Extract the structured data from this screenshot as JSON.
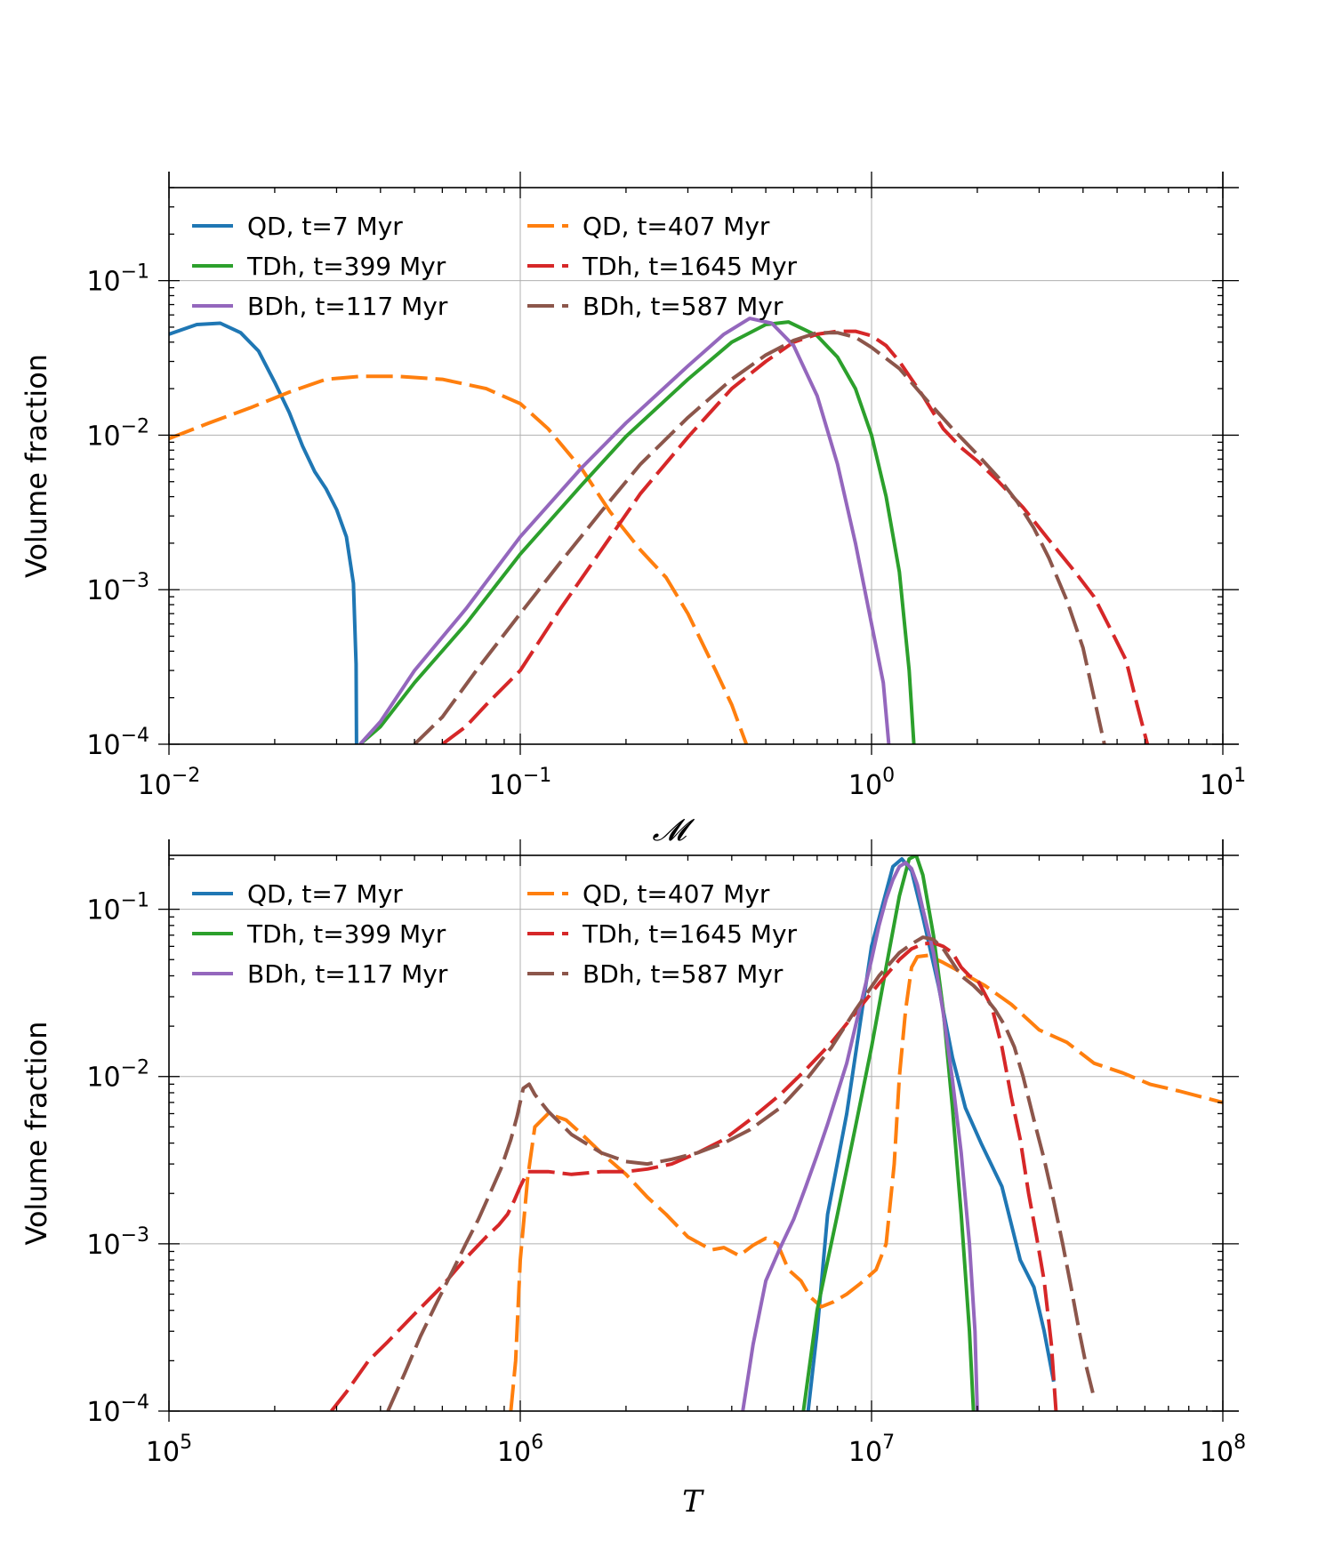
{
  "chart_data": [
    {
      "type": "line",
      "panel": "top",
      "xscale": "log",
      "yscale": "log",
      "xlim": [
        0.01,
        10
      ],
      "ylim": [
        0.0001,
        0.4
      ],
      "xlabel": "𝓜",
      "ylabel": "Volume fraction",
      "grid": true,
      "legend_position": "top-left",
      "xticks": [
        {
          "value": 0.01,
          "base": "10",
          "exp": "−2"
        },
        {
          "value": 0.1,
          "base": "10",
          "exp": "−1"
        },
        {
          "value": 1,
          "base": "10",
          "exp": "0"
        },
        {
          "value": 10,
          "base": "10",
          "exp": "1"
        }
      ],
      "yticks": [
        {
          "value": 0.0001,
          "base": "10",
          "exp": "−4"
        },
        {
          "value": 0.001,
          "base": "10",
          "exp": "−3"
        },
        {
          "value": 0.01,
          "base": "10",
          "exp": "−2"
        },
        {
          "value": 0.1,
          "base": "10",
          "exp": "−1"
        }
      ],
      "series": [
        {
          "name": "QD, t=7 Myr",
          "color": "#1f77b4",
          "dash": "solid",
          "x": [
            0.01,
            0.012,
            0.014,
            0.016,
            0.018,
            0.02,
            0.022,
            0.024,
            0.026,
            0.028,
            0.03,
            0.032,
            0.0335,
            0.034,
            0.0341,
            0.0342
          ],
          "y": [
            0.045,
            0.052,
            0.053,
            0.046,
            0.035,
            0.022,
            0.014,
            0.0085,
            0.0058,
            0.0045,
            0.0033,
            0.0022,
            0.0011,
            0.0004,
            0.00033,
            0.0001
          ]
        },
        {
          "name": "QD, t=407 Myr",
          "color": "#ff7f0e",
          "dash": "long",
          "x": [
            0.01,
            0.013,
            0.017,
            0.022,
            0.028,
            0.035,
            0.045,
            0.06,
            0.08,
            0.1,
            0.12,
            0.15,
            0.18,
            0.22,
            0.26,
            0.3,
            0.33,
            0.36,
            0.4,
            0.44
          ],
          "y": [
            0.0095,
            0.012,
            0.015,
            0.019,
            0.023,
            0.024,
            0.024,
            0.023,
            0.02,
            0.016,
            0.011,
            0.006,
            0.0032,
            0.0018,
            0.0012,
            0.0007,
            0.00045,
            0.0003,
            0.00018,
            0.0001
          ]
        },
        {
          "name": "TDh, t=399 Myr",
          "color": "#2ca02c",
          "dash": "solid",
          "x": [
            0.035,
            0.04,
            0.05,
            0.07,
            0.1,
            0.15,
            0.2,
            0.3,
            0.4,
            0.5,
            0.58,
            0.7,
            0.8,
            0.9,
            1.0,
            1.1,
            1.2,
            1.28,
            1.32
          ],
          "y": [
            0.0001,
            0.00013,
            0.00025,
            0.0006,
            0.0017,
            0.0048,
            0.0098,
            0.023,
            0.04,
            0.052,
            0.054,
            0.044,
            0.032,
            0.02,
            0.01,
            0.004,
            0.0013,
            0.0003,
            0.0001
          ]
        },
        {
          "name": "TDh, t=1645 Myr",
          "color": "#d62728",
          "dash": "long",
          "x": [
            0.06,
            0.07,
            0.08,
            0.1,
            0.13,
            0.17,
            0.22,
            0.3,
            0.4,
            0.5,
            0.6,
            0.7,
            0.8,
            0.9,
            1.0,
            1.1,
            1.2,
            1.4,
            1.6,
            1.8,
            2.0,
            2.3,
            2.7,
            3.2,
            3.8,
            4.3,
            4.8,
            5.3,
            5.7,
            6.1
          ],
          "y": [
            0.0001,
            0.00013,
            0.00018,
            0.0003,
            0.00075,
            0.0018,
            0.0042,
            0.0097,
            0.02,
            0.03,
            0.04,
            0.045,
            0.047,
            0.047,
            0.044,
            0.038,
            0.03,
            0.018,
            0.011,
            0.0083,
            0.0068,
            0.005,
            0.0034,
            0.0021,
            0.0013,
            0.0009,
            0.00055,
            0.00035,
            0.00018,
            0.0001
          ]
        },
        {
          "name": "BDh, t=117 Myr",
          "color": "#9467bd",
          "dash": "solid",
          "x": [
            0.035,
            0.04,
            0.05,
            0.07,
            0.1,
            0.15,
            0.2,
            0.3,
            0.38,
            0.45,
            0.52,
            0.6,
            0.7,
            0.8,
            0.9,
            1.0,
            1.08,
            1.12
          ],
          "y": [
            0.0001,
            0.00014,
            0.0003,
            0.00075,
            0.0022,
            0.0062,
            0.012,
            0.028,
            0.045,
            0.057,
            0.053,
            0.038,
            0.018,
            0.0065,
            0.002,
            0.0006,
            0.00025,
            0.0001
          ]
        },
        {
          "name": "BDh, t=587 Myr",
          "color": "#8c564b",
          "dash": "long",
          "x": [
            0.05,
            0.06,
            0.075,
            0.1,
            0.13,
            0.17,
            0.22,
            0.3,
            0.4,
            0.5,
            0.6,
            0.7,
            0.8,
            0.9,
            1.0,
            1.2,
            1.4,
            1.7,
            2.0,
            2.3,
            2.6,
            2.9,
            3.2,
            3.6,
            4.0,
            4.3,
            4.6
          ],
          "y": [
            0.0001,
            0.00015,
            0.0003,
            0.0007,
            0.0015,
            0.0032,
            0.0065,
            0.013,
            0.023,
            0.033,
            0.041,
            0.046,
            0.046,
            0.043,
            0.037,
            0.027,
            0.018,
            0.011,
            0.0075,
            0.0053,
            0.0037,
            0.0025,
            0.0016,
            0.00085,
            0.00042,
            0.0002,
            0.0001
          ]
        }
      ]
    },
    {
      "type": "line",
      "panel": "bottom",
      "xscale": "log",
      "yscale": "log",
      "xlim": [
        100000,
        100000000
      ],
      "ylim": [
        0.0001,
        0.21
      ],
      "xlabel": "T",
      "ylabel": "Volume fraction",
      "grid": true,
      "legend_position": "top-left",
      "xticks": [
        {
          "value": 100000,
          "base": "10",
          "exp": "5"
        },
        {
          "value": 1000000,
          "base": "10",
          "exp": "6"
        },
        {
          "value": 10000000,
          "base": "10",
          "exp": "7"
        },
        {
          "value": 100000000,
          "base": "10",
          "exp": "8"
        }
      ],
      "yticks": [
        {
          "value": 0.0001,
          "base": "10",
          "exp": "−4"
        },
        {
          "value": 0.001,
          "base": "10",
          "exp": "−3"
        },
        {
          "value": 0.01,
          "base": "10",
          "exp": "−2"
        },
        {
          "value": 0.1,
          "base": "10",
          "exp": "−1"
        }
      ],
      "series": [
        {
          "name": "QD, t=7 Myr",
          "color": "#1f77b4",
          "dash": "solid",
          "x": [
            6600000,
            7000000,
            7500000,
            8500000,
            10000000,
            11500000,
            12200000,
            13000000,
            14000000,
            15500000,
            17000000,
            18500000,
            20500000,
            23500000,
            26500000,
            29000000,
            31000000,
            33000000
          ],
          "y": [
            0.0001,
            0.0003,
            0.0015,
            0.006,
            0.06,
            0.18,
            0.2,
            0.17,
            0.09,
            0.035,
            0.013,
            0.0065,
            0.004,
            0.0022,
            0.0008,
            0.00055,
            0.0003,
            0.00015
          ]
        },
        {
          "name": "QD, t=407 Myr",
          "color": "#ff7f0e",
          "dash": "long",
          "x": [
            940000,
            970000,
            1000000,
            1050000,
            1100000,
            1200000,
            1350000,
            1500000,
            1700000,
            2000000,
            2300000,
            2600000,
            3000000,
            3500000,
            3800000,
            4200000,
            4600000,
            5000000,
            5400000,
            5800000,
            6300000,
            6700000,
            7200000,
            7800000,
            8500000,
            9300000,
            10300000,
            11000000,
            11600000,
            12000000,
            12500000,
            13000000,
            13500000,
            14500000,
            16000000,
            18000000,
            21000000,
            25000000,
            30000000,
            36000000,
            43000000,
            52000000,
            62000000,
            75000000,
            88000000,
            100000000
          ],
          "y": [
            0.0001,
            0.0002,
            0.0008,
            0.0025,
            0.005,
            0.006,
            0.0055,
            0.0045,
            0.0035,
            0.0026,
            0.0019,
            0.0015,
            0.0011,
            0.00092,
            0.00095,
            0.00085,
            0.00098,
            0.00108,
            0.001,
            0.0007,
            0.0006,
            0.00048,
            0.00042,
            0.00045,
            0.0005,
            0.00058,
            0.0007,
            0.001,
            0.003,
            0.01,
            0.025,
            0.045,
            0.052,
            0.053,
            0.048,
            0.042,
            0.035,
            0.027,
            0.019,
            0.016,
            0.012,
            0.0105,
            0.009,
            0.0082,
            0.0075,
            0.007
          ]
        },
        {
          "name": "TDh, t=399 Myr",
          "color": "#2ca02c",
          "dash": "solid",
          "x": [
            6400000,
            7000000,
            8000000,
            9000000,
            10000000,
            11000000,
            12000000,
            12800000,
            13400000,
            14000000,
            15000000,
            16000000,
            17000000,
            18000000,
            19000000,
            19500000
          ],
          "y": [
            0.0001,
            0.0004,
            0.0015,
            0.005,
            0.015,
            0.045,
            0.12,
            0.2,
            0.21,
            0.16,
            0.07,
            0.025,
            0.0065,
            0.0015,
            0.0003,
            0.0001
          ]
        },
        {
          "name": "TDh, t=1645 Myr",
          "color": "#d62728",
          "dash": "long",
          "x": [
            290000,
            320000,
            370000,
            420000,
            500000,
            600000,
            700000,
            800000,
            870000,
            920000,
            960000,
            1000000,
            1050000,
            1200000,
            1400000,
            1700000,
            2000000,
            2300000,
            2700000,
            3200000,
            3800000,
            4500000,
            5500000,
            6500000,
            7700000,
            9000000,
            10500000,
            12000000,
            13000000,
            14000000,
            15000000,
            16000000,
            17000000,
            18000000,
            19000000,
            20000000,
            22000000,
            23500000,
            25000000,
            26500000,
            28000000,
            29500000,
            31000000,
            32500000,
            33500000
          ],
          "y": [
            0.0001,
            0.00013,
            0.0002,
            0.00026,
            0.00038,
            0.00056,
            0.00082,
            0.0011,
            0.0013,
            0.0015,
            0.0018,
            0.0022,
            0.0027,
            0.0027,
            0.0026,
            0.0027,
            0.0027,
            0.0028,
            0.003,
            0.0035,
            0.0042,
            0.0055,
            0.0078,
            0.011,
            0.016,
            0.024,
            0.036,
            0.05,
            0.058,
            0.062,
            0.063,
            0.06,
            0.055,
            0.045,
            0.04,
            0.038,
            0.026,
            0.015,
            0.0075,
            0.0042,
            0.002,
            0.0011,
            0.0006,
            0.00025,
            0.0001
          ]
        },
        {
          "name": "BDh, t=117 Myr",
          "color": "#9467bd",
          "dash": "solid",
          "x": [
            4300000,
            4600000,
            5000000,
            5500000,
            6000000,
            6500000,
            7000000,
            7500000,
            8000000,
            8500000,
            9000000,
            9500000,
            10000000,
            10500000,
            11000000,
            11500000,
            12000000,
            12500000,
            13000000,
            13500000,
            14000000,
            15000000,
            16000000,
            17000000,
            18000000,
            19000000,
            19700000,
            20000000
          ],
          "y": [
            0.0001,
            0.00025,
            0.0006,
            0.00095,
            0.0014,
            0.0022,
            0.0034,
            0.0052,
            0.008,
            0.012,
            0.02,
            0.032,
            0.05,
            0.08,
            0.115,
            0.15,
            0.18,
            0.19,
            0.175,
            0.14,
            0.1,
            0.055,
            0.024,
            0.0095,
            0.0035,
            0.001,
            0.0003,
            0.0001
          ]
        },
        {
          "name": "BDh, t=587 Myr",
          "color": "#8c564b",
          "dash": "long",
          "x": [
            420000,
            470000,
            520000,
            580000,
            640000,
            700000,
            760000,
            820000,
            880000,
            940000,
            980000,
            1020000,
            1060000,
            1100000,
            1200000,
            1400000,
            1700000,
            2000000,
            2300000,
            2700000,
            3200000,
            3800000,
            4500000,
            5500000,
            6500000,
            7700000,
            9000000,
            10500000,
            12000000,
            13000000,
            14000000,
            15000000,
            16000000,
            17000000,
            18000000,
            19500000,
            21000000,
            22500000,
            24000000,
            25500000,
            27000000,
            29000000,
            31000000,
            33000000,
            35000000,
            37000000,
            39000000,
            41000000,
            43000000
          ],
          "y": [
            0.0001,
            0.00017,
            0.00028,
            0.00045,
            0.00068,
            0.001,
            0.0014,
            0.002,
            0.0028,
            0.0042,
            0.0058,
            0.0085,
            0.009,
            0.0078,
            0.0062,
            0.0045,
            0.0035,
            0.0031,
            0.003,
            0.0032,
            0.0035,
            0.004,
            0.0048,
            0.0065,
            0.0095,
            0.015,
            0.025,
            0.04,
            0.055,
            0.062,
            0.068,
            0.066,
            0.058,
            0.048,
            0.04,
            0.035,
            0.03,
            0.025,
            0.02,
            0.015,
            0.01,
            0.0055,
            0.0032,
            0.0018,
            0.001,
            0.00055,
            0.0003,
            0.00018,
            0.00012
          ]
        }
      ]
    }
  ]
}
